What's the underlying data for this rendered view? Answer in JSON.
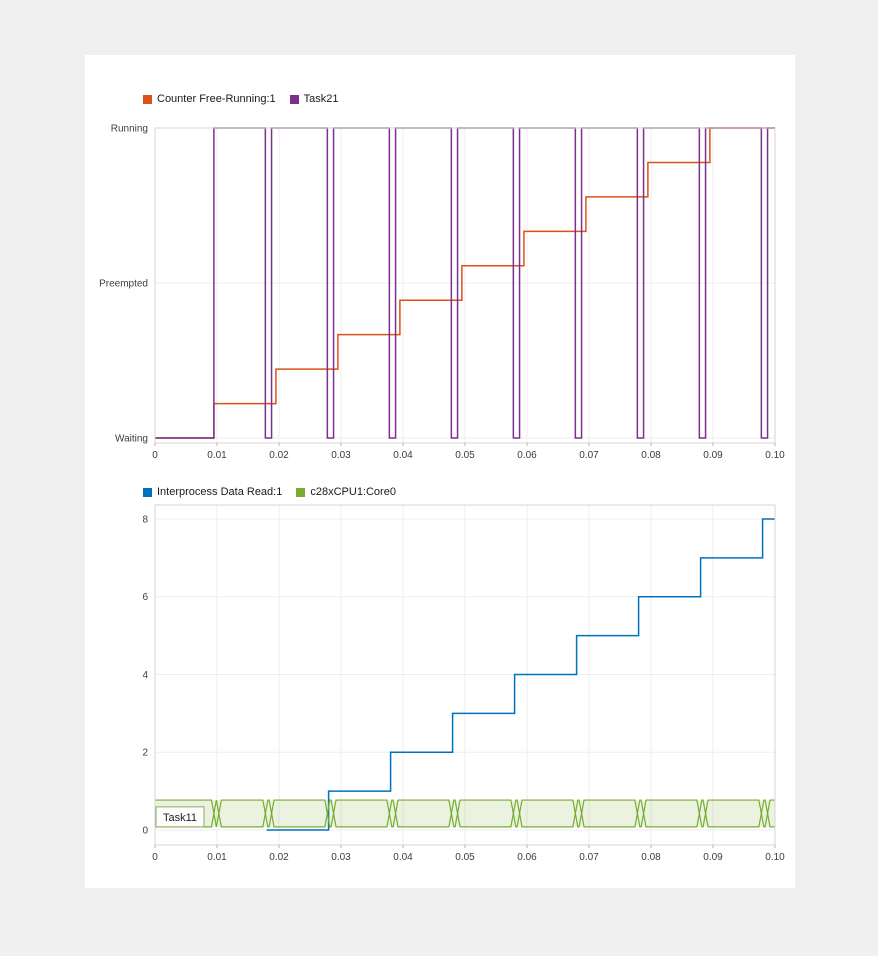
{
  "page": {
    "background_color": "#f0f0f0",
    "canvas_color": "#ffffff"
  },
  "chart_data": [
    {
      "type": "line",
      "id": "task-state-chart",
      "title": "",
      "xlabel": "",
      "ylabel": "",
      "grid": true,
      "legend_position": "top",
      "xlim": [
        0,
        0.1
      ],
      "ylim": [
        -0.0161,
        1
      ],
      "x_ticks": [
        0,
        0.01,
        0.02,
        0.03,
        0.04,
        0.05,
        0.06,
        0.07,
        0.08,
        0.09,
        0.1
      ],
      "x_tick_labels": [
        "0",
        "0.01",
        "0.02",
        "0.03",
        "0.04",
        "0.05",
        "0.06",
        "0.07",
        "0.08",
        "0.09",
        "0.10"
      ],
      "y_ticks": [
        0,
        0.5,
        1
      ],
      "y_tick_labels": [
        "Waiting",
        "Preempted",
        "Running"
      ],
      "series": [
        {
          "name": "Counter Free-Running:1",
          "color": "#d95319",
          "draw": "step",
          "t_end": 0.1,
          "points": [
            [
              0,
              0
            ],
            [
              0.0095,
              0.1111
            ],
            [
              0.0195,
              0.2222
            ],
            [
              0.0295,
              0.3333
            ],
            [
              0.0395,
              0.4444
            ],
            [
              0.0495,
              0.5556
            ],
            [
              0.0595,
              0.6667
            ],
            [
              0.0695,
              0.7778
            ],
            [
              0.0795,
              0.8889
            ],
            [
              0.0895,
              1
            ]
          ]
        },
        {
          "name": "Task21",
          "color": "#7e2f8e",
          "draw": "step",
          "t_end": 0.1,
          "points": [
            [
              0,
              0
            ],
            [
              0.0095,
              1
            ],
            [
              0.0178,
              0
            ],
            [
              0.0188,
              1
            ],
            [
              0.0278,
              0
            ],
            [
              0.0288,
              1
            ],
            [
              0.0378,
              0
            ],
            [
              0.0388,
              1
            ],
            [
              0.0478,
              0
            ],
            [
              0.0488,
              1
            ],
            [
              0.0578,
              0
            ],
            [
              0.0588,
              1
            ],
            [
              0.0678,
              0
            ],
            [
              0.0688,
              1
            ],
            [
              0.0778,
              0
            ],
            [
              0.0788,
              1
            ],
            [
              0.0878,
              0
            ],
            [
              0.0888,
              1
            ],
            [
              0.0978,
              0
            ],
            [
              0.0988,
              1
            ]
          ]
        }
      ]
    },
    {
      "type": "line",
      "id": "interprocess-data-chart",
      "title": "",
      "xlabel": "",
      "ylabel": "",
      "grid": true,
      "legend_position": "top",
      "xlim": [
        0,
        0.1
      ],
      "ylim": [
        -0.386,
        8.36
      ],
      "x_ticks": [
        0,
        0.01,
        0.02,
        0.03,
        0.04,
        0.05,
        0.06,
        0.07,
        0.08,
        0.09,
        0.1
      ],
      "x_tick_labels": [
        "0",
        "0.01",
        "0.02",
        "0.03",
        "0.04",
        "0.05",
        "0.06",
        "0.07",
        "0.08",
        "0.09",
        "0.10"
      ],
      "y_ticks": [
        0,
        2,
        4,
        6,
        8
      ],
      "y_tick_labels": [
        "0",
        "2",
        "4",
        "6",
        "8"
      ],
      "series": [
        {
          "name": "Interprocess Data Read:1",
          "color": "#0072bd",
          "draw": "step",
          "t_end": 0.1,
          "points": [
            [
              0.018,
              0
            ],
            [
              0.028,
              1
            ],
            [
              0.038,
              2
            ],
            [
              0.048,
              3
            ],
            [
              0.058,
              4
            ],
            [
              0.068,
              5
            ],
            [
              0.078,
              6
            ],
            [
              0.088,
              7
            ],
            [
              0.098,
              8
            ]
          ]
        },
        {
          "name": "c28xCPU1:Core0",
          "color": "#77ac30",
          "draw": "band",
          "band": {
            "label": "Task11",
            "y_top": 0.77,
            "y_bottom": 0.08,
            "t_start": 0,
            "t_end": 0.1,
            "crossing_width": 0.0008,
            "crossings": [
              0.0095,
              0.0103,
              0.0178,
              0.0188,
              0.0278,
              0.0288,
              0.0378,
              0.0388,
              0.0478,
              0.0488,
              0.0578,
              0.0588,
              0.0678,
              0.0688,
              0.0778,
              0.0788,
              0.0878,
              0.0888,
              0.0978,
              0.0988
            ]
          }
        }
      ]
    }
  ]
}
